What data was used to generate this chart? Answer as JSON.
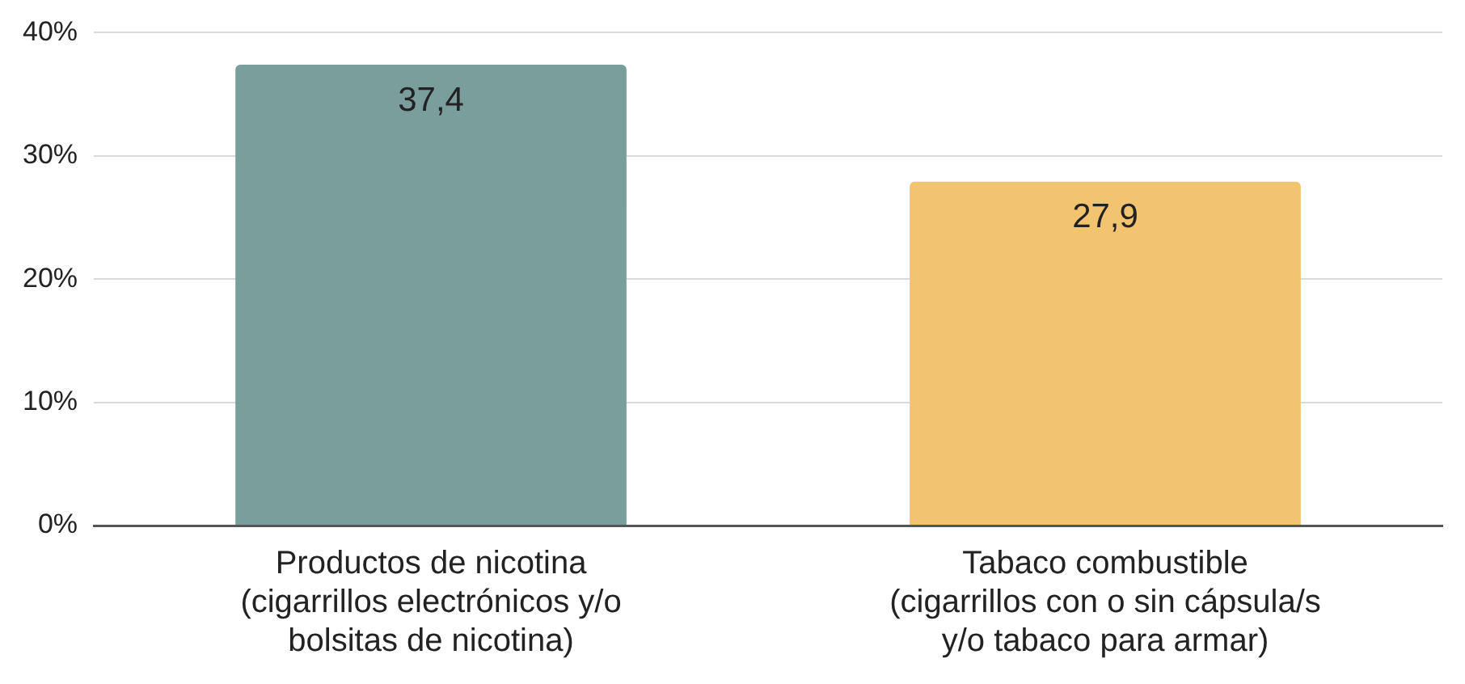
{
  "chart_data": {
    "type": "bar",
    "categories": [
      "Productos de nicotina\n(cigarrillos electrónicos y/o\nbolsitas de nicotina)",
      "Tabaco combustible\n(cigarrillos con o sin cápsula/s\ny/o tabaco para armar)"
    ],
    "values": [
      37.4,
      27.9
    ],
    "colors": [
      "#7a9e9c",
      "#f2c46f"
    ],
    "value_labels": [
      "37,4",
      "27,9"
    ],
    "ylim": [
      0,
      40
    ],
    "yticks": [
      {
        "value": 0,
        "label": "0%"
      },
      {
        "value": 10,
        "label": "10%"
      },
      {
        "value": 20,
        "label": "20%"
      },
      {
        "value": 30,
        "label": "30%"
      },
      {
        "value": 40,
        "label": "40%"
      }
    ],
    "grid": "y",
    "legend": false
  }
}
